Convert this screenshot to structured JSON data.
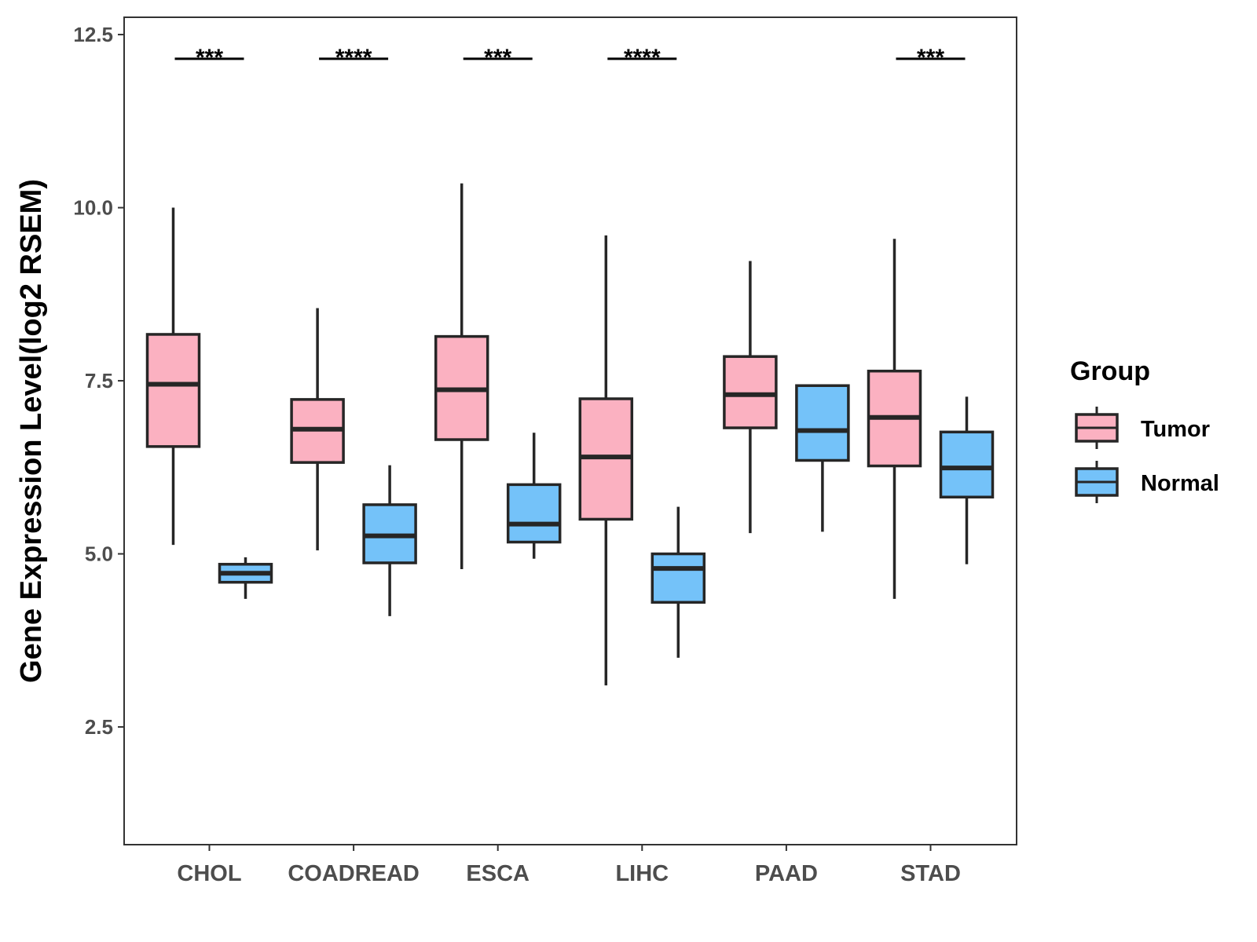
{
  "chart_data": {
    "type": "boxplot",
    "title": "",
    "xlabel": "",
    "ylabel": "Gene Expression Level(log2 RSEM)",
    "ylim": [
      0.8,
      12.75
    ],
    "yticks": [
      2.5,
      5.0,
      7.5,
      10.0,
      12.5
    ],
    "ytick_labels": [
      "2.5",
      "5.0",
      "7.5",
      "10.0",
      "12.5"
    ],
    "grid": false,
    "legend": {
      "title": "Group",
      "position": "right"
    },
    "categories": [
      "CHOL",
      "COADREAD",
      "ESCA",
      "LIHC",
      "PAAD",
      "STAD"
    ],
    "series": [
      {
        "name": "Tumor",
        "color": "#FBB1C1",
        "boxes": [
          {
            "min": 5.13,
            "q1": 6.55,
            "median": 7.45,
            "q3": 8.17,
            "max": 10.0
          },
          {
            "min": 5.05,
            "q1": 6.32,
            "median": 6.8,
            "q3": 7.23,
            "max": 8.55
          },
          {
            "min": 4.78,
            "q1": 6.65,
            "median": 7.37,
            "q3": 8.14,
            "max": 10.35
          },
          {
            "min": 3.1,
            "q1": 5.5,
            "median": 6.4,
            "q3": 7.24,
            "max": 9.6
          },
          {
            "min": 5.3,
            "q1": 6.82,
            "median": 7.3,
            "q3": 7.85,
            "max": 9.23
          },
          {
            "min": 4.35,
            "q1": 6.27,
            "median": 6.97,
            "q3": 7.64,
            "max": 9.55
          }
        ]
      },
      {
        "name": "Normal",
        "color": "#74C2F9",
        "boxes": [
          {
            "min": 4.35,
            "q1": 4.59,
            "median": 4.72,
            "q3": 4.85,
            "max": 4.95
          },
          {
            "min": 4.1,
            "q1": 4.87,
            "median": 5.26,
            "q3": 5.71,
            "max": 6.28
          },
          {
            "min": 4.93,
            "q1": 5.17,
            "median": 5.43,
            "q3": 6.0,
            "max": 6.75
          },
          {
            "min": 3.5,
            "q1": 4.3,
            "median": 4.79,
            "q3": 5.0,
            "max": 5.68
          },
          {
            "min": 5.32,
            "q1": 6.35,
            "median": 6.78,
            "q3": 7.43,
            "max": 7.43
          },
          {
            "min": 4.85,
            "q1": 5.82,
            "median": 6.24,
            "q3": 6.76,
            "max": 7.27
          }
        ]
      }
    ],
    "significance": [
      {
        "category": "CHOL",
        "label": "***",
        "y": 12.15
      },
      {
        "category": "COADREAD",
        "label": "****",
        "y": 12.15
      },
      {
        "category": "ESCA",
        "label": "***",
        "y": 12.15
      },
      {
        "category": "LIHC",
        "label": "****",
        "y": 12.15
      },
      {
        "category": "STAD",
        "label": "***",
        "y": 12.15
      }
    ]
  }
}
